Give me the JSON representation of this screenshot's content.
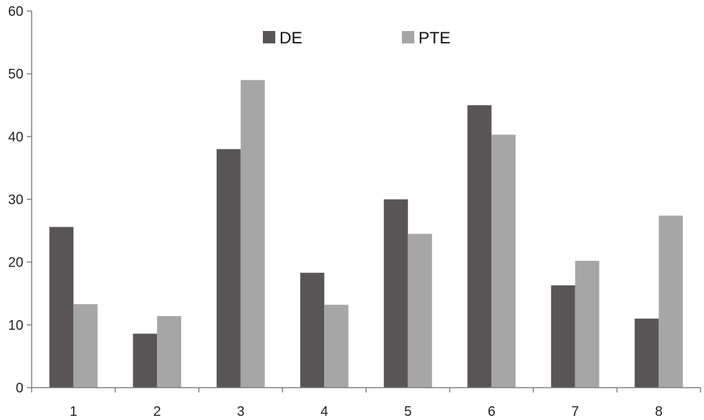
{
  "chart_data": {
    "type": "bar",
    "title": "",
    "xlabel": "",
    "ylabel": "",
    "categories": [
      "1",
      "2",
      "3",
      "4",
      "5",
      "6",
      "7",
      "8"
    ],
    "series": [
      {
        "name": "DE",
        "color": "#595556",
        "values": [
          25.6,
          8.6,
          38.0,
          18.3,
          30.0,
          45.0,
          16.3,
          11.0
        ]
      },
      {
        "name": "PTE",
        "color": "#a6a6a6",
        "values": [
          13.3,
          11.4,
          49.0,
          13.2,
          24.5,
          40.3,
          20.2,
          27.4
        ]
      }
    ],
    "ylim": [
      0,
      60
    ],
    "yticks": [
      "0",
      "10",
      "20",
      "30",
      "40",
      "50",
      "60"
    ],
    "grid": false,
    "legend_position": "top-center"
  }
}
